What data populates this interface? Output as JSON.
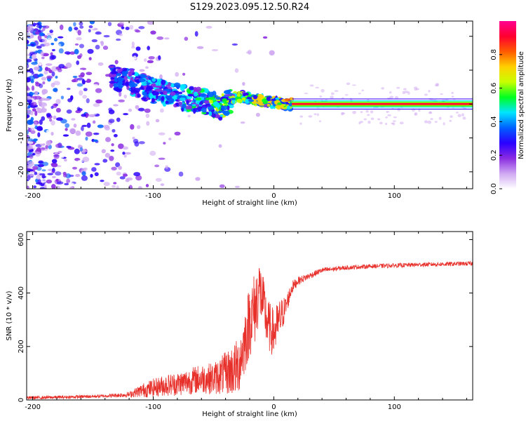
{
  "title": "S129.2023.095.12.50.R24",
  "colors": {
    "snr_line": "#e8302b",
    "axis": "#000000",
    "background": "#ffffff"
  },
  "chart_data": [
    {
      "type": "heatmap",
      "xlabel": "Height of straight line (km)",
      "ylabel": "Frequency (Hz)",
      "xlim": [
        -205,
        165
      ],
      "ylim": [
        -25,
        24.5
      ],
      "xticks": [
        -200,
        -100,
        0,
        100
      ],
      "yticks": [
        -20,
        -10,
        0,
        10,
        20
      ],
      "colorbar": {
        "label": "Normalized spectral amplitude",
        "range": [
          0,
          1
        ],
        "ticks": [
          "0.0",
          "0.2",
          "0.4",
          "0.6",
          "0.8"
        ],
        "colormap": [
          "#ffffff",
          "#cfa8f2",
          "#8a2be2",
          "#2a00ff",
          "#0060ff",
          "#00e5ff",
          "#00ff20",
          "#c8ff00",
          "#ffd000",
          "#ff5a00",
          "#ff0030",
          "#ff0090"
        ]
      },
      "ridge": {
        "description_points": [
          [
            -130,
            7.5
          ],
          [
            -115,
            6
          ],
          [
            -100,
            4
          ],
          [
            -85,
            2.5
          ],
          [
            -70,
            1.5
          ],
          [
            -55,
            0.5
          ],
          [
            -45,
            -1
          ],
          [
            -30,
            2.5
          ],
          [
            -20,
            1.8
          ],
          [
            -10,
            1
          ],
          [
            0,
            0.5
          ],
          [
            10,
            0.2
          ],
          [
            15,
            0
          ]
        ],
        "carrier_frequency_hz": 0,
        "carrier_start_km": 15
      }
    },
    {
      "type": "line",
      "xlabel": "Height of straight line (km)",
      "ylabel": "SNR (10 * v/v)",
      "xlim": [
        -205,
        165
      ],
      "ylim": [
        0,
        630
      ],
      "xticks": [
        -200,
        -100,
        0,
        100
      ],
      "yticks": [
        0,
        200,
        400,
        600
      ],
      "series": [
        {
          "x": [
            -205,
            -180,
            -160,
            -140,
            -120,
            -110,
            -100,
            -90,
            -80,
            -70,
            -60,
            -50,
            -40,
            -30,
            -25,
            -20,
            -15,
            -12,
            -10,
            -5,
            0,
            5,
            10,
            15,
            20,
            30,
            40,
            60,
            80,
            100,
            120,
            140,
            160,
            165
          ],
          "values": [
            8,
            10,
            12,
            15,
            20,
            35,
            45,
            55,
            60,
            70,
            80,
            80,
            100,
            120,
            200,
            300,
            350,
            420,
            380,
            280,
            250,
            300,
            350,
            420,
            445,
            465,
            485,
            495,
            500,
            503,
            506,
            508,
            510,
            510
          ],
          "noise_amp": [
            6,
            6,
            6,
            6,
            10,
            25,
            35,
            40,
            45,
            50,
            55,
            60,
            80,
            110,
            120,
            140,
            140,
            120,
            110,
            100,
            90,
            80,
            40,
            25,
            15,
            12,
            10,
            8,
            8,
            8,
            8,
            8,
            8,
            8
          ]
        }
      ]
    }
  ]
}
